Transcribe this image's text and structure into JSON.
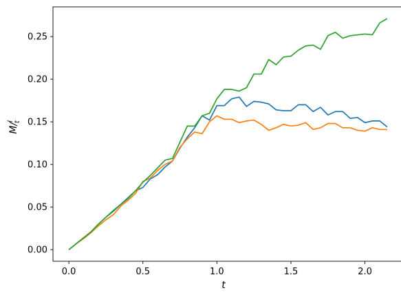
{
  "chart_data": {
    "type": "line",
    "title": "",
    "xlabel": "t",
    "ylabel": "M/l_t",
    "ylabel_main": "M",
    "ylabel_slash": "/",
    "ylabel_sup": "l",
    "ylabel_sub": "t",
    "xlim": [
      -0.1075,
      2.2575
    ],
    "ylim": [
      -0.0136,
      0.2848
    ],
    "xticks": [
      0.0,
      0.5,
      1.0,
      1.5,
      2.0
    ],
    "xtick_labels": [
      "0.0",
      "0.5",
      "1.0",
      "1.5",
      "2.0"
    ],
    "yticks": [
      0.0,
      0.05,
      0.1,
      0.15,
      0.2,
      0.25
    ],
    "ytick_labels": [
      "0.00",
      "0.05",
      "0.10",
      "0.15",
      "0.20",
      "0.25"
    ],
    "grid": false,
    "x": [
      0.0,
      0.05,
      0.1,
      0.15,
      0.2,
      0.25,
      0.3,
      0.35,
      0.4,
      0.45,
      0.5,
      0.55,
      0.6,
      0.65,
      0.7,
      0.75,
      0.8,
      0.85,
      0.9,
      0.95,
      1.0,
      1.05,
      1.1,
      1.15,
      1.2,
      1.25,
      1.3,
      1.35,
      1.4,
      1.45,
      1.5,
      1.55,
      1.6,
      1.65,
      1.7,
      1.75,
      1.8,
      1.85,
      1.9,
      1.95,
      2.0,
      2.05,
      2.1,
      2.15
    ],
    "series": [
      {
        "color": "#1f77b4",
        "values": [
          0.0,
          0.007,
          0.014,
          0.021,
          0.03,
          0.038,
          0.045,
          0.053,
          0.061,
          0.069,
          0.073,
          0.083,
          0.088,
          0.097,
          0.104,
          0.119,
          0.132,
          0.143,
          0.157,
          0.152,
          0.169,
          0.169,
          0.177,
          0.179,
          0.168,
          0.174,
          0.173,
          0.171,
          0.164,
          0.163,
          0.163,
          0.17,
          0.17,
          0.162,
          0.167,
          0.158,
          0.162,
          0.162,
          0.154,
          0.155,
          0.149,
          0.151,
          0.151,
          0.144
        ]
      },
      {
        "color": "#ff7f0e",
        "values": [
          0.0,
          0.007,
          0.013,
          0.02,
          0.028,
          0.035,
          0.041,
          0.051,
          0.058,
          0.066,
          0.08,
          0.084,
          0.093,
          0.1,
          0.104,
          0.12,
          0.13,
          0.138,
          0.136,
          0.15,
          0.157,
          0.153,
          0.153,
          0.149,
          0.151,
          0.152,
          0.147,
          0.14,
          0.143,
          0.147,
          0.145,
          0.146,
          0.149,
          0.141,
          0.143,
          0.148,
          0.148,
          0.143,
          0.143,
          0.14,
          0.139,
          0.143,
          0.141,
          0.141
        ]
      },
      {
        "color": "#2ca02c",
        "values": [
          0.0,
          0.007,
          0.014,
          0.021,
          0.03,
          0.038,
          0.046,
          0.053,
          0.06,
          0.069,
          0.079,
          0.087,
          0.096,
          0.105,
          0.107,
          0.126,
          0.145,
          0.145,
          0.157,
          0.16,
          0.177,
          0.188,
          0.188,
          0.186,
          0.19,
          0.206,
          0.206,
          0.223,
          0.217,
          0.226,
          0.227,
          0.234,
          0.239,
          0.24,
          0.235,
          0.251,
          0.255,
          0.248,
          0.251,
          0.252,
          0.253,
          0.252,
          0.266,
          0.271
        ]
      }
    ]
  }
}
